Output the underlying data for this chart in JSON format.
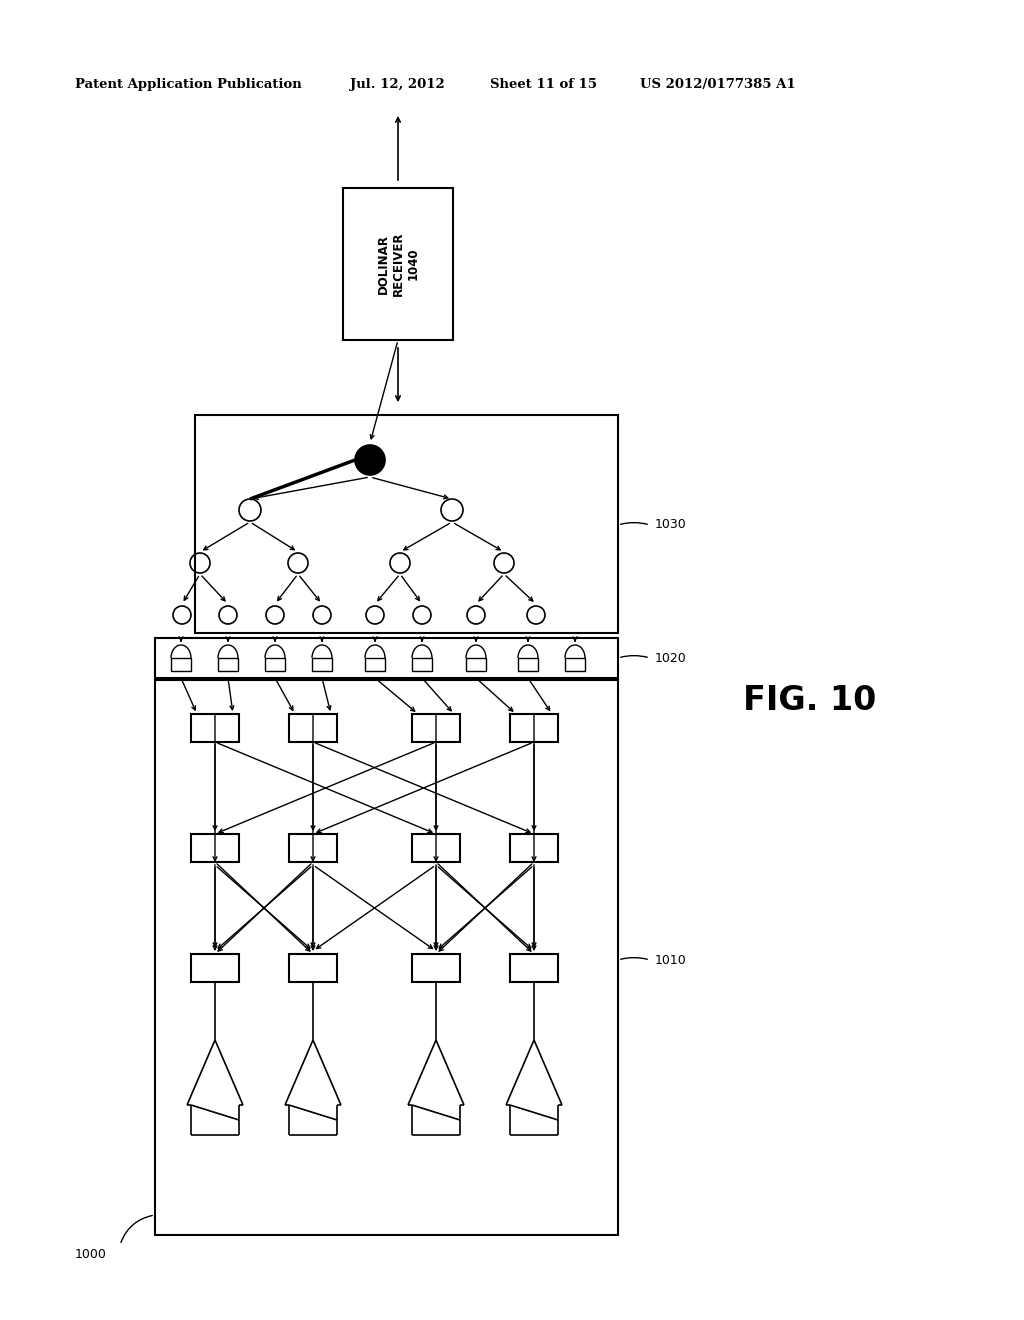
{
  "bg_color": "#ffffff",
  "header_text": "Patent Application Publication",
  "header_date": "Jul. 12, 2012",
  "header_sheet": "Sheet 11 of 15",
  "header_patent": "US 2012/0177385 A1",
  "fig_label": "FIG. 10",
  "label_1000": "1000",
  "label_1010": "1010",
  "label_1020": "1020",
  "label_1030": "1030",
  "dolinar_text": "DOLINAR\nRECEIVER\n1040"
}
